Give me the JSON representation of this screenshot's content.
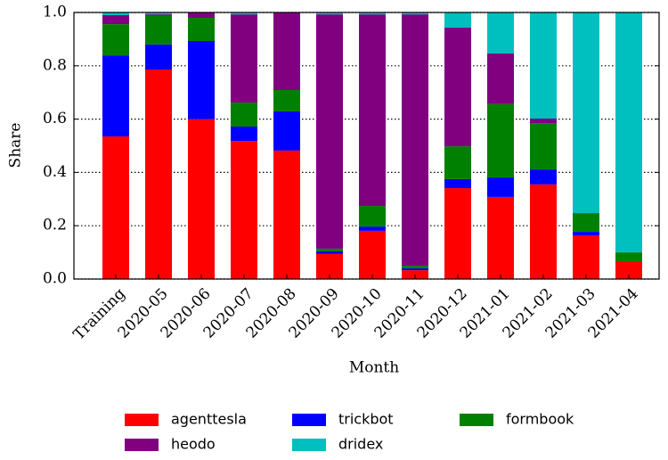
{
  "chart_data": {
    "type": "stacked-bar",
    "xlabel": "Month",
    "ylabel": "Share",
    "categories": [
      "Training",
      "2020-05",
      "2020-06",
      "2020-07",
      "2020-08",
      "2020-09",
      "2020-10",
      "2020-11",
      "2020-12",
      "2021-01",
      "2021-02",
      "2021-03",
      "2021-04"
    ],
    "series": [
      {
        "name": "agenttesla",
        "color": "#ff0000",
        "values": [
          0.535,
          0.786,
          0.6,
          0.518,
          0.482,
          0.094,
          0.181,
          0.033,
          0.341,
          0.308,
          0.355,
          0.164,
          0.067
        ]
      },
      {
        "name": "trickbot",
        "color": "#0000ff",
        "values": [
          0.304,
          0.094,
          0.293,
          0.054,
          0.147,
          0.01,
          0.016,
          0.007,
          0.034,
          0.073,
          0.056,
          0.013,
          0
        ]
      },
      {
        "name": "formbook",
        "color": "#008000",
        "values": [
          0.117,
          0.107,
          0.087,
          0.09,
          0.08,
          0.01,
          0.077,
          0.01,
          0.123,
          0.275,
          0.174,
          0.067,
          0.033
        ]
      },
      {
        "name": "heodo",
        "color": "#800080",
        "values": [
          0.034,
          0.006,
          0.02,
          0.331,
          0.291,
          0.879,
          0.719,
          0.943,
          0.445,
          0.19,
          0.017,
          0.003,
          0
        ]
      },
      {
        "name": "dridex",
        "color": "#00bfbf",
        "values": [
          0.01,
          0.007,
          0,
          0.007,
          0,
          0.007,
          0.007,
          0.007,
          0.057,
          0.154,
          0.398,
          0.753,
          0.9
        ]
      }
    ],
    "ylim": [
      0,
      1
    ],
    "yticks": [
      {
        "value": 0,
        "label": "0.0"
      },
      0.2,
      0.4,
      0.6,
      0.8,
      {
        "value": 1,
        "label": "1.0"
      }
    ],
    "grid": true,
    "legend": "bottom"
  }
}
